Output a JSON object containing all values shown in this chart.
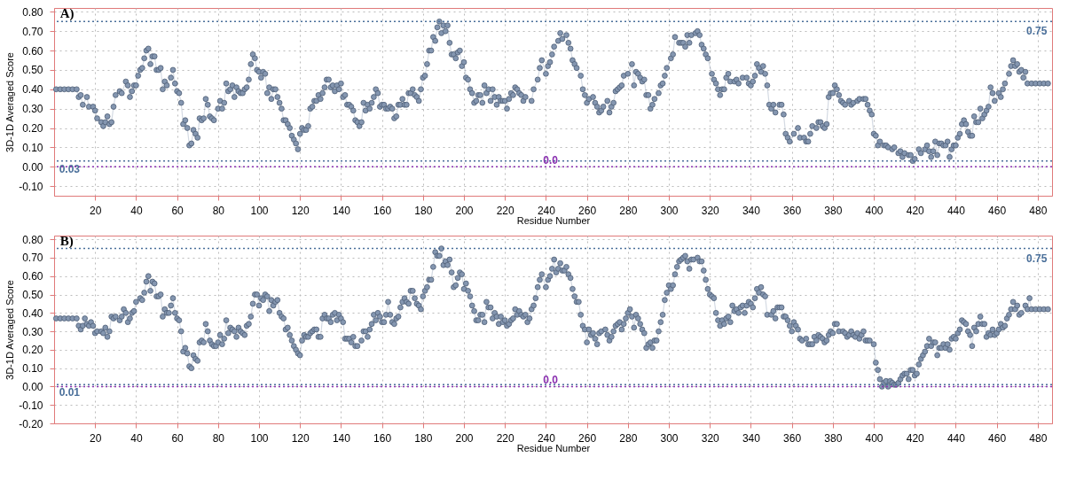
{
  "chart_data": [
    {
      "type": "line",
      "title": "A)",
      "xlabel": "Residue Number",
      "ylabel": "3D-1D Averaged Score",
      "marker": "circle",
      "line_style": "solid",
      "grid": true,
      "xlim": [
        0,
        487
      ],
      "ylim": [
        -0.15,
        0.82
      ],
      "xticks": [
        20,
        40,
        60,
        80,
        100,
        120,
        140,
        160,
        180,
        200,
        220,
        240,
        260,
        280,
        300,
        320,
        340,
        360,
        380,
        400,
        420,
        440,
        460,
        480
      ],
      "yticks": [
        {
          "value": -0.1,
          "label": "-0.10"
        },
        {
          "value": 0,
          "label": "0.00"
        },
        {
          "value": 0.1,
          "label": "0.10"
        },
        {
          "value": 0.2,
          "label": "0.20"
        },
        {
          "value": 0.3,
          "label": "0.30"
        },
        {
          "value": 0.4,
          "label": "0.40"
        },
        {
          "value": 0.5,
          "label": "0.50"
        },
        {
          "value": 0.6,
          "label": "0.60"
        },
        {
          "value": 0.7,
          "label": "0.70"
        },
        {
          "value": 0.8,
          "label": "0.80"
        }
      ],
      "ref_lines": [
        {
          "axis": "y",
          "value": 0.75,
          "label": "0.75",
          "color": "#4a6f9a",
          "line_style": "dotted"
        },
        {
          "axis": "y",
          "value": 0.03,
          "label": "0.03",
          "color": "#4a6f9a",
          "line_style": "dotted"
        },
        {
          "axis": "y",
          "value": 0,
          "label": "0.0",
          "color": "#8a2fb0",
          "line_style": "dotted"
        }
      ],
      "series": [
        {
          "color": "#8496b0",
          "x": [
            1,
            3,
            5,
            7,
            9,
            11,
            12,
            13,
            14,
            16,
            17,
            19,
            20,
            21,
            23,
            24,
            25,
            26,
            27,
            28,
            29,
            30,
            32,
            33,
            35,
            36,
            37,
            38,
            39,
            40,
            41,
            42,
            43,
            44,
            45,
            46,
            47,
            48,
            49,
            50,
            51,
            52,
            53,
            54,
            55,
            57,
            58,
            59,
            60,
            61,
            62,
            63,
            64,
            65,
            66,
            67,
            68,
            69,
            70,
            71,
            72,
            73,
            74,
            75,
            76,
            77,
            78,
            80,
            81,
            82,
            83,
            84,
            85,
            86,
            87,
            88,
            89,
            90,
            91,
            92,
            93,
            94,
            95,
            96,
            97,
            98,
            99,
            100,
            101,
            102,
            103,
            104,
            105,
            106,
            107,
            108,
            109,
            110,
            111,
            112,
            113,
            114,
            115,
            116,
            117,
            118,
            119,
            120,
            121,
            122,
            123,
            124,
            125,
            126,
            127,
            128,
            129,
            130,
            131,
            132,
            133,
            134,
            135,
            136,
            137,
            138,
            139,
            140,
            141,
            142,
            143,
            144,
            145,
            146,
            147,
            148,
            149,
            150,
            151,
            152,
            153,
            154,
            155,
            156,
            157,
            158,
            159,
            160,
            161,
            162,
            163,
            164,
            165,
            166,
            167,
            168,
            169,
            170,
            171,
            172,
            173,
            174,
            175,
            176,
            177,
            178,
            179,
            180,
            181,
            182,
            183,
            184,
            185,
            186,
            187,
            188,
            189,
            190,
            191,
            192,
            193,
            194,
            195,
            196,
            197,
            198,
            199,
            200,
            201,
            202,
            203,
            204,
            205,
            206,
            207,
            208,
            209,
            210,
            211,
            212,
            213,
            214,
            215,
            216,
            217,
            218,
            219,
            220,
            221,
            222,
            223,
            224,
            225,
            226,
            227,
            228,
            229,
            230,
            233,
            234,
            236,
            237,
            238,
            240,
            241,
            242,
            243,
            244,
            246,
            247,
            248,
            250,
            251,
            252,
            253,
            254,
            255,
            257,
            258,
            259,
            260,
            261,
            263,
            264,
            265,
            266,
            267,
            268,
            270,
            271,
            272,
            273,
            274,
            275,
            276,
            277,
            278,
            280,
            282,
            283,
            284,
            285,
            286,
            287,
            288,
            289,
            290,
            291,
            292,
            293,
            295,
            296,
            297,
            298,
            299,
            301,
            302,
            303,
            305,
            306,
            307,
            308,
            309,
            310,
            311,
            313,
            314,
            315,
            316,
            317,
            318,
            319,
            321,
            322,
            323,
            324,
            325,
            326,
            327,
            328,
            329,
            330,
            332,
            333,
            334,
            336,
            338,
            339,
            340,
            341,
            342,
            343,
            344,
            345,
            346,
            347,
            348,
            349,
            350,
            351,
            352,
            354,
            355,
            356,
            357,
            358,
            359,
            361,
            363,
            364,
            366,
            367,
            368,
            369,
            370,
            372,
            373,
            374,
            375,
            376,
            377,
            378,
            379,
            380,
            381,
            382,
            383,
            384,
            385,
            386,
            388,
            389,
            390,
            392,
            393,
            395,
            396,
            397,
            398,
            399,
            400,
            401,
            402,
            403,
            405,
            406,
            407,
            409,
            410,
            412,
            413,
            414,
            415,
            417,
            418,
            419,
            420,
            422,
            423,
            425,
            426,
            427,
            428,
            429,
            430,
            431,
            432,
            433,
            434,
            435,
            436,
            437,
            438,
            439,
            440,
            441,
            442,
            443,
            444,
            445,
            446,
            447,
            448,
            449,
            450,
            451,
            452,
            453,
            454,
            455,
            456,
            457,
            458,
            459,
            461,
            462,
            463,
            464,
            466,
            467,
            468,
            469,
            470,
            471,
            472,
            473,
            474,
            475,
            477,
            479,
            481,
            483,
            485
          ],
          "values": [
            0.4,
            0.4,
            0.4,
            0.4,
            0.4,
            0.4,
            0.36,
            0.37,
            0.32,
            0.36,
            0.31,
            0.31,
            0.29,
            0.25,
            0.23,
            0.21,
            0.23,
            0.26,
            0.22,
            0.23,
            0.31,
            0.37,
            0.39,
            0.38,
            0.44,
            0.42,
            0.36,
            0.39,
            0.42,
            0.42,
            0.47,
            0.5,
            0.51,
            0.56,
            0.6,
            0.61,
            0.53,
            0.57,
            0.57,
            0.5,
            0.5,
            0.51,
            0.4,
            0.44,
            0.42,
            0.46,
            0.5,
            0.43,
            0.39,
            0.38,
            0.33,
            0.22,
            0.24,
            0.2,
            0.11,
            0.12,
            0.19,
            0.17,
            0.15,
            0.25,
            0.24,
            0.25,
            0.35,
            0.32,
            0.26,
            0.25,
            0.24,
            0.3,
            0.34,
            0.3,
            0.33,
            0.43,
            0.39,
            0.4,
            0.42,
            0.36,
            0.41,
            0.39,
            0.38,
            0.38,
            0.4,
            0.41,
            0.45,
            0.53,
            0.58,
            0.56,
            0.5,
            0.49,
            0.46,
            0.49,
            0.48,
            0.38,
            0.41,
            0.35,
            0.4,
            0.4,
            0.36,
            0.33,
            0.3,
            0.24,
            0.24,
            0.22,
            0.2,
            0.16,
            0.14,
            0.12,
            0.09,
            0.17,
            0.2,
            0.19,
            0.19,
            0.21,
            0.3,
            0.31,
            0.34,
            0.34,
            0.37,
            0.35,
            0.38,
            0.41,
            0.45,
            0.45,
            0.41,
            0.42,
            0.39,
            0.42,
            0.4,
            0.43,
            0.36,
            0.37,
            0.32,
            0.32,
            0.31,
            0.29,
            0.24,
            0.23,
            0.21,
            0.23,
            0.33,
            0.29,
            0.32,
            0.3,
            0.33,
            0.36,
            0.4,
            0.38,
            0.31,
            0.32,
            0.32,
            0.3,
            0.3,
            0.31,
            0.3,
            0.25,
            0.26,
            0.32,
            0.32,
            0.35,
            0.32,
            0.32,
            0.38,
            0.38,
            0.4,
            0.37,
            0.36,
            0.34,
            0.4,
            0.46,
            0.47,
            0.53,
            0.6,
            0.6,
            0.67,
            0.65,
            0.72,
            0.75,
            0.69,
            0.73,
            0.7,
            0.73,
            0.64,
            0.58,
            0.58,
            0.56,
            0.59,
            0.6,
            0.52,
            0.54,
            0.46,
            0.45,
            0.4,
            0.38,
            0.33,
            0.34,
            0.37,
            0.37,
            0.33,
            0.42,
            0.38,
            0.4,
            0.34,
            0.4,
            0.36,
            0.32,
            0.36,
            0.34,
            0.34,
            0.34,
            0.3,
            0.35,
            0.38,
            0.37,
            0.41,
            0.4,
            0.38,
            0.37,
            0.34,
            0.36,
            0.34,
            0.4,
            0.45,
            0.51,
            0.55,
            0.48,
            0.52,
            0.54,
            0.58,
            0.62,
            0.65,
            0.69,
            0.66,
            0.68,
            0.64,
            0.61,
            0.55,
            0.53,
            0.51,
            0.47,
            0.4,
            0.37,
            0.33,
            0.35,
            0.36,
            0.33,
            0.31,
            0.28,
            0.29,
            0.31,
            0.34,
            0.28,
            0.31,
            0.33,
            0.39,
            0.4,
            0.41,
            0.42,
            0.47,
            0.48,
            0.53,
            0.42,
            0.49,
            0.48,
            0.46,
            0.44,
            0.45,
            0.37,
            0.37,
            0.3,
            0.32,
            0.35,
            0.38,
            0.42,
            0.43,
            0.47,
            0.51,
            0.56,
            0.58,
            0.67,
            0.64,
            0.64,
            0.64,
            0.62,
            0.68,
            0.64,
            0.68,
            0.69,
            0.7,
            0.68,
            0.63,
            0.61,
            0.58,
            0.56,
            0.48,
            0.45,
            0.43,
            0.4,
            0.37,
            0.4,
            0.4,
            0.46,
            0.48,
            0.44,
            0.44,
            0.45,
            0.43,
            0.46,
            0.46,
            0.43,
            0.42,
            0.44,
            0.47,
            0.53,
            0.51,
            0.49,
            0.52,
            0.48,
            0.42,
            0.32,
            0.3,
            0.32,
            0.28,
            0.32,
            0.32,
            0.27,
            0.17,
            0.15,
            0.13,
            0.17,
            0.2,
            0.15,
            0.15,
            0.13,
            0.13,
            0.17,
            0.21,
            0.2,
            0.23,
            0.23,
            0.21,
            0.2,
            0.22,
            0.36,
            0.38,
            0.38,
            0.42,
            0.4,
            0.37,
            0.34,
            0.33,
            0.32,
            0.34,
            0.32,
            0.33,
            0.34,
            0.35,
            0.35,
            0.35,
            0.32,
            0.29,
            0.27,
            0.17,
            0.16,
            0.11,
            0.13,
            0.11,
            0.11,
            0.1,
            0.09,
            0.1,
            0.07,
            0.08,
            0.05,
            0.07,
            0.06,
            0.06,
            0.03,
            0.04,
            0.09,
            0.07,
            0.09,
            0.11,
            0.08,
            0.05,
            0.08,
            0.13,
            0.06,
            0.12,
            0.12,
            0.11,
            0.11,
            0.13,
            0.05,
            0.09,
            0.11,
            0.11,
            0.15,
            0.17,
            0.22,
            0.24,
            0.22,
            0.18,
            0.16,
            0.16,
            0.26,
            0.23,
            0.23,
            0.3,
            0.25,
            0.27,
            0.29,
            0.31,
            0.41,
            0.38,
            0.34,
            0.38,
            0.36,
            0.4,
            0.43,
            0.48,
            0.52,
            0.55,
            0.52,
            0.53,
            0.49,
            0.5,
            0.46,
            0.49,
            0.43,
            0.43,
            0.43,
            0.43,
            0.43,
            0.43
          ]
        }
      ]
    },
    {
      "type": "line",
      "title": "B)",
      "xlabel": "Residue Number",
      "ylabel": "3D-1D Averaged Score",
      "marker": "circle",
      "line_style": "solid",
      "grid": true,
      "xlim": [
        0,
        487
      ],
      "ylim": [
        -0.2,
        0.82
      ],
      "xticks": [
        20,
        40,
        60,
        80,
        100,
        120,
        140,
        160,
        180,
        200,
        220,
        240,
        260,
        280,
        300,
        320,
        340,
        360,
        380,
        400,
        420,
        440,
        460,
        480
      ],
      "yticks": [
        {
          "value": -0.2,
          "label": "-0.20"
        },
        {
          "value": -0.1,
          "label": "-0.10"
        },
        {
          "value": 0,
          "label": "0.00"
        },
        {
          "value": 0.1,
          "label": "0.10"
        },
        {
          "value": 0.2,
          "label": "0.20"
        },
        {
          "value": 0.3,
          "label": "0.30"
        },
        {
          "value": 0.4,
          "label": "0.40"
        },
        {
          "value": 0.5,
          "label": "0.50"
        },
        {
          "value": 0.6,
          "label": "0.60"
        },
        {
          "value": 0.7,
          "label": "0.70"
        },
        {
          "value": 0.8,
          "label": "0.80"
        }
      ],
      "ref_lines": [
        {
          "axis": "y",
          "value": 0.75,
          "label": "0.75",
          "color": "#4a6f9a",
          "line_style": "dotted"
        },
        {
          "axis": "y",
          "value": 0.01,
          "label": "0.01",
          "color": "#4a6f9a",
          "line_style": "dotted"
        },
        {
          "axis": "y",
          "value": 0,
          "label": "0.0",
          "color": "#8a2fb0",
          "line_style": "dotted"
        }
      ],
      "series": [
        {
          "color": "#8496b0",
          "x": [
            1,
            3,
            5,
            7,
            9,
            11,
            12,
            13,
            14,
            15,
            16,
            17,
            18,
            19,
            20,
            21,
            23,
            24,
            25,
            26,
            27,
            28,
            29,
            30,
            32,
            33,
            34,
            35,
            36,
            37,
            38,
            39,
            40,
            42,
            43,
            44,
            45,
            46,
            47,
            48,
            49,
            50,
            51,
            52,
            53,
            54,
            55,
            56,
            57,
            58,
            59,
            60,
            61,
            62,
            63,
            64,
            65,
            66,
            67,
            68,
            69,
            70,
            71,
            72,
            73,
            74,
            75,
            76,
            77,
            78,
            79,
            80,
            81,
            82,
            83,
            84,
            85,
            86,
            87,
            88,
            89,
            90,
            91,
            92,
            93,
            94,
            95,
            96,
            97,
            98,
            99,
            100,
            101,
            102,
            103,
            104,
            105,
            106,
            107,
            108,
            109,
            110,
            111,
            112,
            113,
            114,
            115,
            116,
            117,
            118,
            119,
            120,
            121,
            122,
            123,
            124,
            125,
            126,
            127,
            128,
            129,
            130,
            131,
            132,
            133,
            134,
            135,
            136,
            137,
            138,
            139,
            140,
            141,
            142,
            143,
            144,
            145,
            146,
            147,
            148,
            150,
            151,
            152,
            153,
            154,
            155,
            156,
            157,
            158,
            159,
            160,
            161,
            162,
            163,
            164,
            165,
            166,
            167,
            168,
            169,
            170,
            171,
            172,
            173,
            174,
            175,
            176,
            177,
            178,
            179,
            180,
            181,
            182,
            183,
            184,
            185,
            186,
            187,
            188,
            189,
            190,
            191,
            192,
            193,
            194,
            195,
            196,
            197,
            198,
            199,
            200,
            201,
            202,
            203,
            204,
            205,
            206,
            207,
            208,
            209,
            210,
            211,
            212,
            213,
            214,
            215,
            216,
            217,
            218,
            219,
            220,
            221,
            222,
            223,
            224,
            225,
            226,
            227,
            228,
            229,
            230,
            231,
            232,
            233,
            234,
            235,
            236,
            237,
            238,
            240,
            241,
            242,
            243,
            244,
            245,
            246,
            247,
            248,
            249,
            250,
            251,
            252,
            253,
            254,
            255,
            256,
            257,
            258,
            259,
            260,
            261,
            262,
            263,
            264,
            265,
            266,
            267,
            269,
            270,
            271,
            272,
            273,
            274,
            275,
            276,
            277,
            278,
            279,
            280,
            281,
            282,
            283,
            284,
            285,
            286,
            287,
            288,
            289,
            290,
            291,
            292,
            293,
            294,
            295,
            296,
            297,
            298,
            299,
            300,
            301,
            302,
            303,
            304,
            305,
            306,
            307,
            308,
            309,
            310,
            311,
            312,
            314,
            315,
            316,
            317,
            318,
            319,
            320,
            321,
            322,
            323,
            324,
            325,
            326,
            327,
            328,
            329,
            330,
            331,
            332,
            333,
            334,
            335,
            336,
            337,
            338,
            339,
            340,
            341,
            342,
            343,
            344,
            345,
            346,
            347,
            348,
            350,
            351,
            352,
            353,
            354,
            355,
            356,
            357,
            358,
            359,
            360,
            361,
            362,
            363,
            364,
            365,
            367,
            368,
            369,
            370,
            371,
            372,
            373,
            374,
            375,
            376,
            377,
            378,
            379,
            380,
            381,
            382,
            383,
            385,
            386,
            387,
            388,
            389,
            390,
            391,
            392,
            393,
            394,
            395,
            396,
            397,
            398,
            400,
            401,
            402,
            403,
            404,
            405,
            406,
            407,
            408,
            409,
            410,
            411,
            412,
            413,
            414,
            415,
            416,
            417,
            418,
            419,
            420,
            421,
            422,
            423,
            424,
            425,
            426,
            427,
            428,
            429,
            430,
            431,
            432,
            433,
            434,
            435,
            436,
            437,
            438,
            439,
            440,
            441,
            442,
            443,
            444,
            445,
            446,
            447,
            448,
            449,
            450,
            451,
            452,
            453,
            454,
            455,
            456,
            457,
            458,
            459,
            460,
            461,
            462,
            463,
            464,
            465,
            466,
            467,
            468,
            469,
            470,
            471,
            472,
            474,
            475,
            476,
            477,
            479,
            481,
            483,
            485
          ],
          "values": [
            0.37,
            0.37,
            0.37,
            0.37,
            0.37,
            0.37,
            0.33,
            0.31,
            0.33,
            0.37,
            0.34,
            0.33,
            0.35,
            0.33,
            0.29,
            0.3,
            0.3,
            0.29,
            0.32,
            0.27,
            0.3,
            0.38,
            0.37,
            0.38,
            0.36,
            0.38,
            0.42,
            0.4,
            0.35,
            0.37,
            0.4,
            0.41,
            0.46,
            0.48,
            0.47,
            0.51,
            0.57,
            0.6,
            0.52,
            0.57,
            0.56,
            0.49,
            0.49,
            0.5,
            0.38,
            0.42,
            0.4,
            0.4,
            0.44,
            0.48,
            0.4,
            0.37,
            0.36,
            0.3,
            0.19,
            0.21,
            0.18,
            0.11,
            0.1,
            0.17,
            0.15,
            0.14,
            0.24,
            0.25,
            0.24,
            0.34,
            0.3,
            0.25,
            0.23,
            0.22,
            0.22,
            0.24,
            0.28,
            0.23,
            0.26,
            0.36,
            0.29,
            0.32,
            0.31,
            0.3,
            0.27,
            0.32,
            0.3,
            0.29,
            0.28,
            0.33,
            0.34,
            0.38,
            0.45,
            0.5,
            0.5,
            0.44,
            0.48,
            0.47,
            0.5,
            0.49,
            0.41,
            0.47,
            0.44,
            0.46,
            0.47,
            0.4,
            0.38,
            0.37,
            0.31,
            0.32,
            0.28,
            0.25,
            0.22,
            0.2,
            0.18,
            0.17,
            0.25,
            0.28,
            0.27,
            0.27,
            0.29,
            0.3,
            0.31,
            0.31,
            0.27,
            0.27,
            0.37,
            0.39,
            0.37,
            0.37,
            0.35,
            0.39,
            0.4,
            0.36,
            0.39,
            0.37,
            0.35,
            0.26,
            0.26,
            0.26,
            0.24,
            0.27,
            0.22,
            0.22,
            0.25,
            0.3,
            0.3,
            0.27,
            0.31,
            0.34,
            0.39,
            0.36,
            0.4,
            0.38,
            0.35,
            0.35,
            0.39,
            0.46,
            0.39,
            0.35,
            0.34,
            0.37,
            0.38,
            0.43,
            0.46,
            0.48,
            0.46,
            0.45,
            0.52,
            0.52,
            0.48,
            0.45,
            0.44,
            0.42,
            0.49,
            0.52,
            0.54,
            0.58,
            0.58,
            0.65,
            0.73,
            0.71,
            0.71,
            0.75,
            0.66,
            0.68,
            0.66,
            0.69,
            0.62,
            0.54,
            0.55,
            0.59,
            0.62,
            0.61,
            0.53,
            0.56,
            0.52,
            0.49,
            0.44,
            0.41,
            0.36,
            0.36,
            0.39,
            0.39,
            0.35,
            0.46,
            0.43,
            0.43,
            0.37,
            0.4,
            0.38,
            0.34,
            0.38,
            0.35,
            0.36,
            0.33,
            0.34,
            0.36,
            0.37,
            0.42,
            0.39,
            0.41,
            0.39,
            0.38,
            0.39,
            0.35,
            0.37,
            0.42,
            0.44,
            0.48,
            0.54,
            0.58,
            0.61,
            0.54,
            0.58,
            0.6,
            0.64,
            0.69,
            0.62,
            0.64,
            0.67,
            0.63,
            0.63,
            0.65,
            0.61,
            0.59,
            0.53,
            0.49,
            0.46,
            0.46,
            0.39,
            0.33,
            0.31,
            0.24,
            0.31,
            0.28,
            0.29,
            0.26,
            0.23,
            0.29,
            0.3,
            0.31,
            0.28,
            0.25,
            0.27,
            0.3,
            0.33,
            0.34,
            0.35,
            0.31,
            0.34,
            0.37,
            0.4,
            0.42,
            0.38,
            0.32,
            0.39,
            0.37,
            0.34,
            0.31,
            0.29,
            0.21,
            0.23,
            0.24,
            0.21,
            0.25,
            0.25,
            0.3,
            0.35,
            0.39,
            0.47,
            0.51,
            0.55,
            0.53,
            0.55,
            0.61,
            0.65,
            0.68,
            0.69,
            0.7,
            0.71,
            0.68,
            0.64,
            0.69,
            0.69,
            0.7,
            0.68,
            0.68,
            0.63,
            0.58,
            0.53,
            0.5,
            0.49,
            0.48,
            0.4,
            0.36,
            0.33,
            0.36,
            0.34,
            0.37,
            0.38,
            0.35,
            0.44,
            0.41,
            0.42,
            0.4,
            0.43,
            0.44,
            0.4,
            0.44,
            0.46,
            0.45,
            0.43,
            0.48,
            0.53,
            0.51,
            0.54,
            0.5,
            0.49,
            0.39,
            0.39,
            0.41,
            0.37,
            0.43,
            0.43,
            0.43,
            0.38,
            0.38,
            0.36,
            0.33,
            0.3,
            0.35,
            0.33,
            0.31,
            0.26,
            0.25,
            0.26,
            0.23,
            0.23,
            0.23,
            0.27,
            0.25,
            0.28,
            0.27,
            0.26,
            0.24,
            0.25,
            0.28,
            0.3,
            0.29,
            0.34,
            0.34,
            0.3,
            0.3,
            0.29,
            0.27,
            0.28,
            0.3,
            0.28,
            0.27,
            0.29,
            0.26,
            0.28,
            0.3,
            0.25,
            0.25,
            0.25,
            0.23,
            0.13,
            0.09,
            0.04,
            0.0,
            0.02,
            0.03,
            0.0,
            0.03,
            0.02,
            0.01,
            0.01,
            0.02,
            0.04,
            0.06,
            0.07,
            0.07,
            0.04,
            0.09,
            0.09,
            0.06,
            0.07,
            0.12,
            0.15,
            0.17,
            0.19,
            0.22,
            0.26,
            0.22,
            0.24,
            0.24,
            0.17,
            0.21,
            0.21,
            0.23,
            0.21,
            0.23,
            0.2,
            0.26,
            0.27,
            0.26,
            0.29,
            0.31,
            0.36,
            0.35,
            0.34,
            0.3,
            0.28,
            0.22,
            0.32,
            0.3,
            0.34,
            0.38,
            0.34,
            0.34,
            0.27,
            0.29,
            0.28,
            0.31,
            0.28,
            0.29,
            0.31,
            0.34,
            0.32,
            0.33,
            0.37,
            0.39,
            0.42,
            0.46,
            0.42,
            0.44,
            0.39,
            0.4,
            0.44,
            0.42,
            0.48,
            0.42,
            0.42,
            0.42,
            0.42,
            0.42
          ]
        }
      ]
    }
  ]
}
